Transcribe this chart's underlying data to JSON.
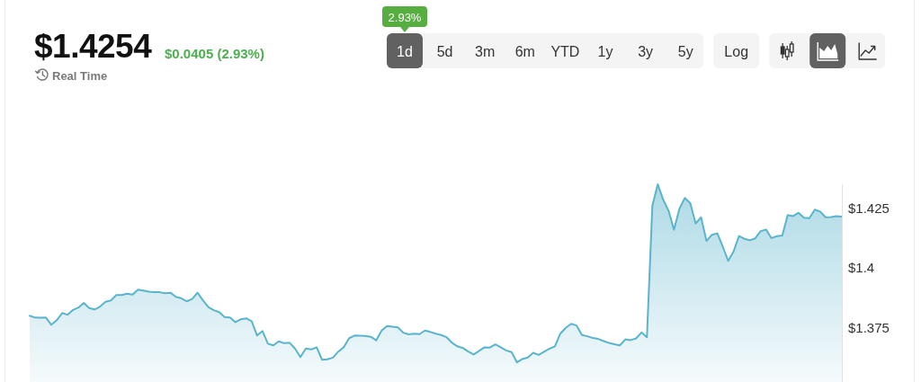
{
  "chart_data": {
    "type": "area",
    "title": "$1.4254",
    "subtitle": "$0.0405 (2.93%)",
    "annotations": [
      "Real Time",
      "2.93%",
      "1d",
      "5d",
      "3m",
      "6m",
      "YTD",
      "1y",
      "3y",
      "5y",
      "Log"
    ],
    "categories": [
      null,
      null,
      null,
      null,
      null,
      null,
      null,
      null,
      null,
      null,
      null,
      null,
      null,
      null,
      null,
      null,
      null,
      null,
      null,
      null,
      null,
      null,
      null,
      null,
      null,
      null,
      null,
      null,
      null,
      null,
      null,
      null,
      null,
      null,
      null,
      null,
      null,
      null,
      null,
      null,
      null,
      null,
      null,
      null,
      null,
      null,
      null,
      null,
      null,
      null,
      null,
      null,
      null,
      null,
      null,
      null,
      null,
      null,
      null,
      null,
      null,
      null,
      null,
      null,
      null,
      null,
      null,
      null,
      null,
      null,
      null,
      null,
      null,
      null,
      null,
      null,
      null,
      null,
      null,
      null,
      null,
      null,
      null,
      null,
      null,
      null,
      null,
      null,
      null,
      null,
      null,
      null,
      null,
      null,
      null,
      null,
      null,
      null,
      null,
      null,
      null,
      null,
      null,
      null,
      null,
      null,
      null,
      null,
      null,
      null,
      null,
      null,
      null,
      null,
      null,
      null,
      null,
      null,
      null,
      null,
      null,
      null,
      null,
      null,
      null,
      null,
      null,
      null,
      null,
      null,
      null,
      null,
      null,
      null,
      null,
      null,
      null,
      null,
      null,
      null,
      null,
      null,
      null,
      null,
      null,
      null,
      null,
      null,
      null,
      null,
      null
    ],
    "series": [
      {
        "color": "#5ab4cc",
        "values": [
          1.3797,
          1.3789,
          1.3788,
          1.3789,
          1.3759,
          1.3778,
          1.3808,
          1.3801,
          1.3821,
          1.3831,
          1.385,
          1.3829,
          1.3823,
          1.3835,
          1.3855,
          1.3861,
          1.3883,
          1.3883,
          1.3889,
          1.3885,
          1.3906,
          1.3902,
          1.3897,
          1.3895,
          1.3895,
          1.3891,
          1.3893,
          1.3876,
          1.387,
          1.3857,
          1.3867,
          1.3893,
          1.3861,
          1.3833,
          1.382,
          1.3812,
          1.3791,
          1.3789,
          1.377,
          1.3782,
          1.3786,
          1.3774,
          1.3714,
          1.3733,
          1.368,
          1.3673,
          1.369,
          1.3682,
          1.3684,
          1.366,
          1.3624,
          1.366,
          1.3656,
          1.3665,
          1.3613,
          1.3615,
          1.3622,
          1.3647,
          1.3665,
          1.3703,
          1.3714,
          1.3713,
          1.3712,
          1.3709,
          1.3694,
          1.3735,
          1.3754,
          1.3751,
          1.3748,
          1.3726,
          1.3719,
          1.3722,
          1.372,
          1.3735,
          1.3729,
          1.3722,
          1.3716,
          1.3707,
          1.3684,
          1.3669,
          1.3662,
          1.3647,
          1.3635,
          1.365,
          1.3665,
          1.3664,
          1.3677,
          1.3665,
          1.3652,
          1.3645,
          1.3602,
          1.3616,
          1.3622,
          1.3642,
          1.3633,
          1.3646,
          1.3659,
          1.3669,
          1.3722,
          1.3746,
          1.3763,
          1.3756,
          1.3716,
          1.3711,
          1.3704,
          1.37,
          1.3691,
          1.3683,
          1.3678,
          1.3673,
          1.3698,
          1.3695,
          1.3702,
          1.3727,
          1.3707,
          1.4256,
          1.4346,
          1.4282,
          1.4235,
          1.4156,
          1.4244,
          1.4289,
          1.4267,
          1.4182,
          1.4208,
          1.4109,
          1.4135,
          1.4141,
          1.4086,
          1.4026,
          1.4065,
          1.413,
          1.4118,
          1.4112,
          1.412,
          1.415,
          1.4157,
          1.4121,
          1.4129,
          1.4132,
          1.4217,
          1.4213,
          1.4227,
          1.4206,
          1.4204,
          1.424,
          1.4232,
          1.4208,
          1.4209,
          1.4213,
          1.4211
        ]
      }
    ],
    "ylim": [
      1.352,
      1.4346
    ],
    "yticks": [
      {
        "value": 1.375,
        "label": "$1.375"
      },
      {
        "value": 1.4,
        "label": "$1.4"
      },
      {
        "value": 1.425,
        "label": "$1.425"
      }
    ],
    "tick_labels": "y"
  }
}
